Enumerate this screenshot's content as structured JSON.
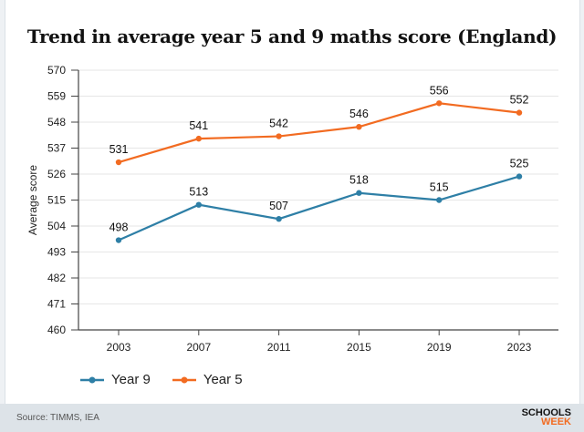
{
  "chart_data": {
    "type": "line",
    "title": "Trend in average year 5 and 9 maths score (England)",
    "ylabel": "Average score",
    "xlabel": "",
    "categories": [
      "2003",
      "2007",
      "2011",
      "2015",
      "2019",
      "2023"
    ],
    "ylim": [
      460,
      570
    ],
    "yticks": [
      460,
      471,
      482,
      493,
      504,
      515,
      526,
      537,
      548,
      559,
      570
    ],
    "grid": true,
    "legend": "bottom-left",
    "series": [
      {
        "name": "Year 9",
        "color": "#2e7fa6",
        "values": [
          498,
          513,
          507,
          518,
          515,
          525
        ]
      },
      {
        "name": "Year 5",
        "color": "#f26b21",
        "values": [
          531,
          541,
          542,
          546,
          556,
          552
        ]
      }
    ]
  },
  "footer": {
    "source": "Source: TIMMS, IEA",
    "logo_top": "SCHOOLS",
    "logo_bottom": "WEEK"
  }
}
